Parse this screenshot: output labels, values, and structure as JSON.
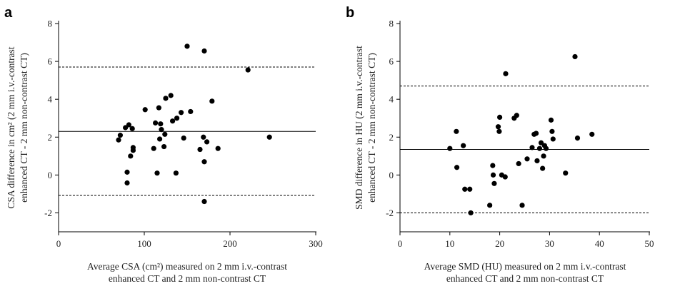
{
  "chart_data": [
    {
      "type": "scatter",
      "panel_label": "a",
      "xlim": [
        0,
        300
      ],
      "ylim": [
        -3,
        8
      ],
      "xticks": [
        0,
        100,
        200,
        300
      ],
      "yticks": [
        -2,
        0,
        2,
        4,
        6,
        8
      ],
      "xlabel_lines": [
        "Average CSA (cm²) measured on 2 mm i.v.-contrast",
        "enhanced CT and 2 mm non-contrast CT"
      ],
      "ylabel_lines": [
        "CSA difference in cm² (2 mm i.v.-contrast",
        "enhanced CT - 2 mm non-contrast CT)"
      ],
      "lines": {
        "mean": 2.3,
        "upper_loa": 5.7,
        "lower_loa": -1.08
      },
      "grid": false,
      "points": [
        {
          "x": 70,
          "y": 1.85
        },
        {
          "x": 72,
          "y": 2.1
        },
        {
          "x": 78,
          "y": 2.5
        },
        {
          "x": 80,
          "y": 0.15
        },
        {
          "x": 80,
          "y": -0.42
        },
        {
          "x": 82,
          "y": 2.65
        },
        {
          "x": 84,
          "y": 1.0
        },
        {
          "x": 86,
          "y": 2.45
        },
        {
          "x": 87,
          "y": 1.3
        },
        {
          "x": 87,
          "y": 1.45
        },
        {
          "x": 101,
          "y": 3.45
        },
        {
          "x": 111,
          "y": 1.4
        },
        {
          "x": 113,
          "y": 2.75
        },
        {
          "x": 115,
          "y": 0.1
        },
        {
          "x": 117,
          "y": 3.55
        },
        {
          "x": 118,
          "y": 1.9
        },
        {
          "x": 119,
          "y": 2.7
        },
        {
          "x": 120,
          "y": 2.4
        },
        {
          "x": 123,
          "y": 1.5
        },
        {
          "x": 124,
          "y": 2.15
        },
        {
          "x": 125,
          "y": 4.05
        },
        {
          "x": 131,
          "y": 4.2
        },
        {
          "x": 133,
          "y": 2.85
        },
        {
          "x": 137,
          "y": 0.1
        },
        {
          "x": 138,
          "y": 3.0
        },
        {
          "x": 143,
          "y": 3.3
        },
        {
          "x": 146,
          "y": 1.95
        },
        {
          "x": 150,
          "y": 6.8
        },
        {
          "x": 154,
          "y": 3.35
        },
        {
          "x": 165,
          "y": 1.35
        },
        {
          "x": 169,
          "y": 2.0
        },
        {
          "x": 170,
          "y": 0.7
        },
        {
          "x": 170,
          "y": 6.55
        },
        {
          "x": 170,
          "y": -1.4
        },
        {
          "x": 173,
          "y": 1.75
        },
        {
          "x": 179,
          "y": 3.9
        },
        {
          "x": 186,
          "y": 1.4
        },
        {
          "x": 221,
          "y": 5.55
        },
        {
          "x": 246,
          "y": 2.0
        }
      ]
    },
    {
      "type": "scatter",
      "panel_label": "b",
      "xlim": [
        0,
        50
      ],
      "ylim": [
        -3,
        8
      ],
      "xticks": [
        0,
        10,
        20,
        30,
        40,
        50
      ],
      "yticks": [
        -2,
        0,
        2,
        4,
        6,
        8
      ],
      "xlabel_lines": [
        "Average SMD (HU) measured on 2 mm i.v.-contrast",
        "enhanced CT and 2 mm non-contrast CT"
      ],
      "ylabel_lines": [
        "SMD difference in HU (2 mm i.v.-contrast",
        "enhanced CT - 2 mm non-contrast CT)"
      ],
      "lines": {
        "mean": 1.35,
        "upper_loa": 4.7,
        "lower_loa": -2.0
      },
      "grid": false,
      "points": [
        {
          "x": 10.0,
          "y": 1.4
        },
        {
          "x": 11.3,
          "y": 2.3
        },
        {
          "x": 11.4,
          "y": 0.4
        },
        {
          "x": 12.7,
          "y": 1.55
        },
        {
          "x": 13.0,
          "y": -0.75
        },
        {
          "x": 14.0,
          "y": -0.75
        },
        {
          "x": 14.2,
          "y": -2.0
        },
        {
          "x": 18.0,
          "y": -1.6
        },
        {
          "x": 18.6,
          "y": 0.5
        },
        {
          "x": 18.7,
          "y": 0.0
        },
        {
          "x": 18.9,
          "y": -0.45
        },
        {
          "x": 19.7,
          "y": 2.55
        },
        {
          "x": 19.9,
          "y": 2.3
        },
        {
          "x": 20.0,
          "y": 3.05
        },
        {
          "x": 20.4,
          "y": 0.0
        },
        {
          "x": 21.1,
          "y": -0.1
        },
        {
          "x": 21.2,
          "y": 5.35
        },
        {
          "x": 22.9,
          "y": 3.0
        },
        {
          "x": 23.4,
          "y": 3.15
        },
        {
          "x": 23.8,
          "y": 0.6
        },
        {
          "x": 24.5,
          "y": -1.6
        },
        {
          "x": 25.5,
          "y": 0.85
        },
        {
          "x": 26.5,
          "y": 1.45
        },
        {
          "x": 26.9,
          "y": 2.15
        },
        {
          "x": 27.3,
          "y": 2.2
        },
        {
          "x": 27.5,
          "y": 0.75
        },
        {
          "x": 28.0,
          "y": 1.4
        },
        {
          "x": 28.3,
          "y": 1.7
        },
        {
          "x": 28.6,
          "y": 0.35
        },
        {
          "x": 28.8,
          "y": 1.0
        },
        {
          "x": 29.0,
          "y": 1.55
        },
        {
          "x": 29.3,
          "y": 1.4
        },
        {
          "x": 30.3,
          "y": 2.9
        },
        {
          "x": 30.5,
          "y": 2.3
        },
        {
          "x": 30.7,
          "y": 1.9
        },
        {
          "x": 33.2,
          "y": 0.1
        },
        {
          "x": 35.1,
          "y": 6.25
        },
        {
          "x": 35.6,
          "y": 1.95
        },
        {
          "x": 38.5,
          "y": 2.15
        }
      ]
    }
  ]
}
